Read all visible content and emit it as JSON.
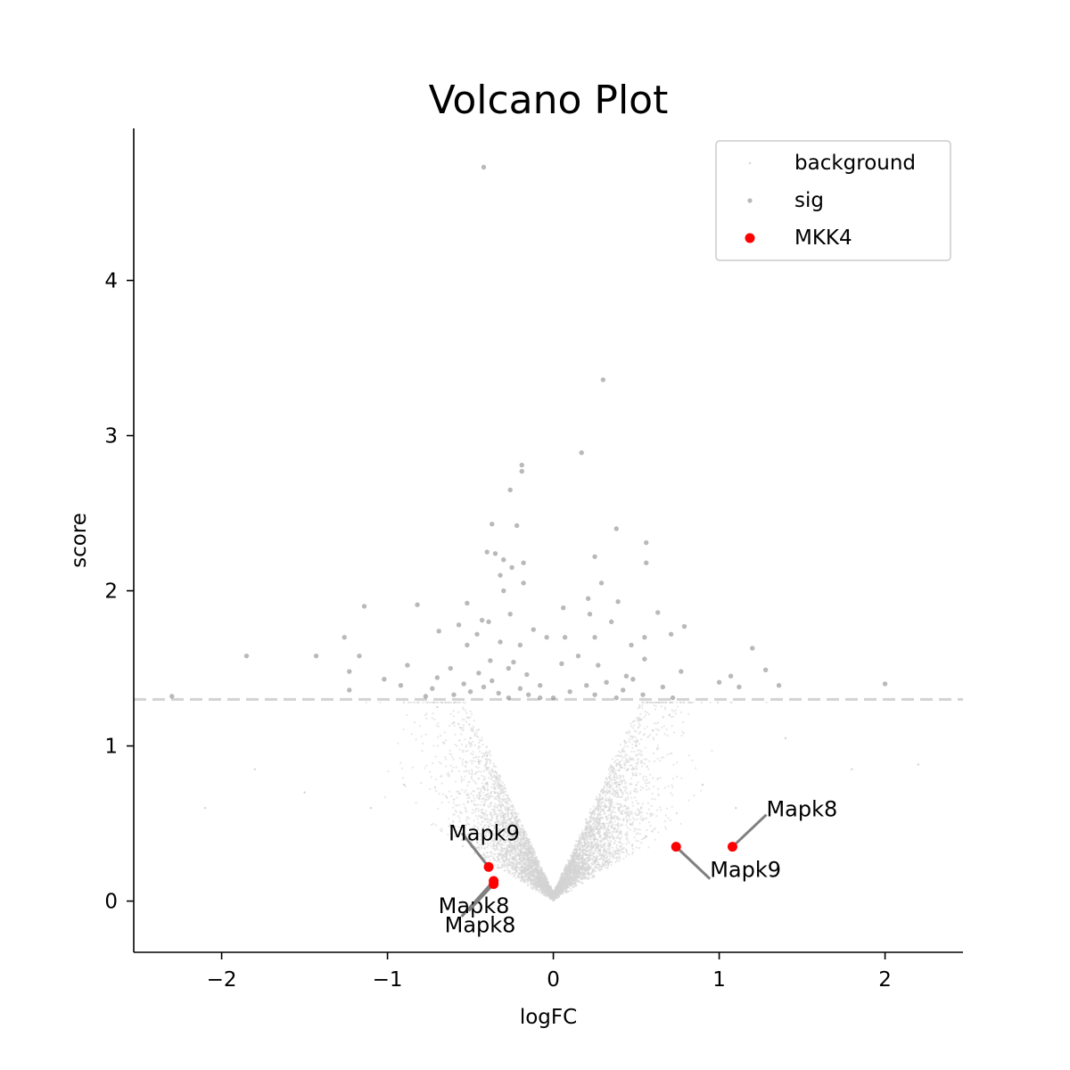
{
  "chart_data": {
    "type": "scatter",
    "title": "Volcano Plot",
    "xlabel": "logFC",
    "ylabel": "score",
    "xlim": [
      -2.53,
      2.47
    ],
    "ylim": [
      -0.33,
      4.98
    ],
    "xticks": [
      -2,
      -1,
      0,
      1,
      2
    ],
    "yticks": [
      0,
      1,
      2,
      3,
      4
    ],
    "xtick_labels": [
      "−2",
      "−1",
      "0",
      "1",
      "2"
    ],
    "ytick_labels": [
      "0",
      "1",
      "2",
      "3",
      "4"
    ],
    "threshold": 1.3,
    "grid": false,
    "legend": {
      "placement": "top-right",
      "entries": [
        "background",
        "sig",
        "MKK4"
      ]
    },
    "colors": {
      "background": "#d3d3d3",
      "sig": "#808080",
      "highlight": "#ff0000",
      "threshold": "#d3d3d3",
      "annotation_line": "#808080"
    },
    "series": [
      {
        "name": "background",
        "description_count": 6000,
        "points": [
          [
            0.02,
            0.02
          ],
          [
            -0.02,
            0.03
          ],
          [
            0.05,
            0.05
          ],
          [
            -0.05,
            0.06
          ],
          [
            0.08,
            0.1
          ],
          [
            -0.1,
            0.12
          ],
          [
            0.15,
            0.2
          ],
          [
            -0.15,
            0.2
          ],
          [
            0.2,
            0.3
          ],
          [
            -0.2,
            0.32
          ],
          [
            0.25,
            0.4
          ],
          [
            -0.25,
            0.42
          ],
          [
            0.3,
            0.5
          ],
          [
            -0.3,
            0.55
          ],
          [
            0.35,
            0.65
          ],
          [
            -0.35,
            0.7
          ],
          [
            0.4,
            0.75
          ],
          [
            -0.4,
            0.76
          ],
          [
            0.45,
            0.85
          ],
          [
            -0.45,
            0.9
          ],
          [
            0.5,
            1.0
          ],
          [
            -0.5,
            1.05
          ],
          [
            0.6,
            1.1
          ],
          [
            -0.6,
            1.15
          ],
          [
            0.7,
            1.2
          ],
          [
            -0.7,
            1.25
          ],
          [
            0.9,
            0.75
          ],
          [
            -0.9,
            0.75
          ],
          [
            1.1,
            0.6
          ],
          [
            -1.1,
            0.6
          ],
          [
            1.4,
            1.05
          ],
          [
            -1.5,
            0.7
          ],
          [
            1.8,
            0.85
          ],
          [
            -1.8,
            0.85
          ],
          [
            2.2,
            0.88
          ],
          [
            -2.1,
            0.6
          ]
        ]
      },
      {
        "name": "sig",
        "points": [
          [
            -0.42,
            4.73
          ],
          [
            0.3,
            3.36
          ],
          [
            0.17,
            2.89
          ],
          [
            -0.19,
            2.81
          ],
          [
            -0.19,
            2.77
          ],
          [
            -0.26,
            2.65
          ],
          [
            -0.37,
            2.43
          ],
          [
            -0.22,
            2.42
          ],
          [
            0.38,
            2.4
          ],
          [
            0.56,
            2.31
          ],
          [
            -0.4,
            2.25
          ],
          [
            -0.35,
            2.24
          ],
          [
            -0.3,
            2.2
          ],
          [
            0.25,
            2.22
          ],
          [
            -0.18,
            2.18
          ],
          [
            0.56,
            2.18
          ],
          [
            -0.25,
            2.15
          ],
          [
            -0.32,
            2.1
          ],
          [
            -0.18,
            2.05
          ],
          [
            0.29,
            2.05
          ],
          [
            -0.3,
            2.0
          ],
          [
            0.21,
            1.95
          ],
          [
            0.39,
            1.93
          ],
          [
            -0.52,
            1.92
          ],
          [
            -0.82,
            1.91
          ],
          [
            -1.14,
            1.9
          ],
          [
            0.06,
            1.89
          ],
          [
            0.63,
            1.86
          ],
          [
            0.22,
            1.85
          ],
          [
            -0.26,
            1.85
          ],
          [
            -0.43,
            1.81
          ],
          [
            -0.39,
            1.8
          ],
          [
            0.35,
            1.8
          ],
          [
            -0.57,
            1.78
          ],
          [
            0.79,
            1.77
          ],
          [
            -0.12,
            1.75
          ],
          [
            -0.69,
            1.74
          ],
          [
            -0.46,
            1.72
          ],
          [
            0.71,
            1.72
          ],
          [
            0.55,
            1.7
          ],
          [
            -1.26,
            1.7
          ],
          [
            -0.04,
            1.7
          ],
          [
            0.07,
            1.7
          ],
          [
            0.25,
            1.7
          ],
          [
            -0.32,
            1.67
          ],
          [
            -0.2,
            1.65
          ],
          [
            -0.52,
            1.65
          ],
          [
            0.47,
            1.65
          ],
          [
            1.2,
            1.63
          ],
          [
            -1.85,
            1.58
          ],
          [
            -1.43,
            1.58
          ],
          [
            -1.17,
            1.58
          ],
          [
            0.15,
            1.58
          ],
          [
            0.55,
            1.56
          ],
          [
            -0.38,
            1.55
          ],
          [
            -0.24,
            1.54
          ],
          [
            0.05,
            1.53
          ],
          [
            0.27,
            1.52
          ],
          [
            -0.88,
            1.52
          ],
          [
            -0.27,
            1.5
          ],
          [
            1.28,
            1.49
          ],
          [
            -0.62,
            1.5
          ],
          [
            0.77,
            1.48
          ],
          [
            -1.23,
            1.48
          ],
          [
            -0.45,
            1.47
          ],
          [
            -0.16,
            1.46
          ],
          [
            0.44,
            1.45
          ],
          [
            1.07,
            1.45
          ],
          [
            -0.7,
            1.44
          ],
          [
            -1.02,
            1.43
          ],
          [
            0.48,
            1.43
          ],
          [
            -0.37,
            1.42
          ],
          [
            1.0,
            1.41
          ],
          [
            0.32,
            1.41
          ],
          [
            -0.54,
            1.4
          ],
          [
            1.36,
            1.39
          ],
          [
            2.0,
            1.4
          ],
          [
            -0.92,
            1.39
          ],
          [
            -0.08,
            1.39
          ],
          [
            0.2,
            1.39
          ],
          [
            -0.42,
            1.38
          ],
          [
            0.66,
            1.38
          ],
          [
            1.12,
            1.38
          ],
          [
            -0.73,
            1.37
          ],
          [
            -0.2,
            1.37
          ],
          [
            -1.23,
            1.36
          ],
          [
            0.42,
            1.36
          ],
          [
            -0.5,
            1.35
          ],
          [
            0.1,
            1.35
          ],
          [
            -0.33,
            1.34
          ],
          [
            -0.6,
            1.33
          ],
          [
            0.54,
            1.33
          ],
          [
            -0.15,
            1.33
          ],
          [
            0.25,
            1.33
          ],
          [
            -0.77,
            1.32
          ],
          [
            -2.3,
            1.32
          ],
          [
            0.72,
            1.31
          ],
          [
            -0.27,
            1.31
          ],
          [
            0.0,
            1.31
          ],
          [
            -0.08,
            1.31
          ],
          [
            0.38,
            1.31
          ]
        ]
      },
      {
        "name": "MKK4",
        "points": [
          [
            -0.39,
            0.22
          ],
          [
            -0.36,
            0.13
          ],
          [
            -0.36,
            0.11
          ],
          [
            0.74,
            0.35
          ],
          [
            1.08,
            0.35
          ]
        ]
      }
    ],
    "annotations": [
      {
        "text": "Mapk9",
        "x": -0.39,
        "y": 0.22
      },
      {
        "text": "Mapk8",
        "x": -0.36,
        "y": 0.13
      },
      {
        "text": "Mapk8",
        "x": -0.36,
        "y": 0.11
      },
      {
        "text": "Mapk8",
        "x": 1.08,
        "y": 0.35
      },
      {
        "text": "Mapk9",
        "x": 0.74,
        "y": 0.35
      }
    ]
  }
}
